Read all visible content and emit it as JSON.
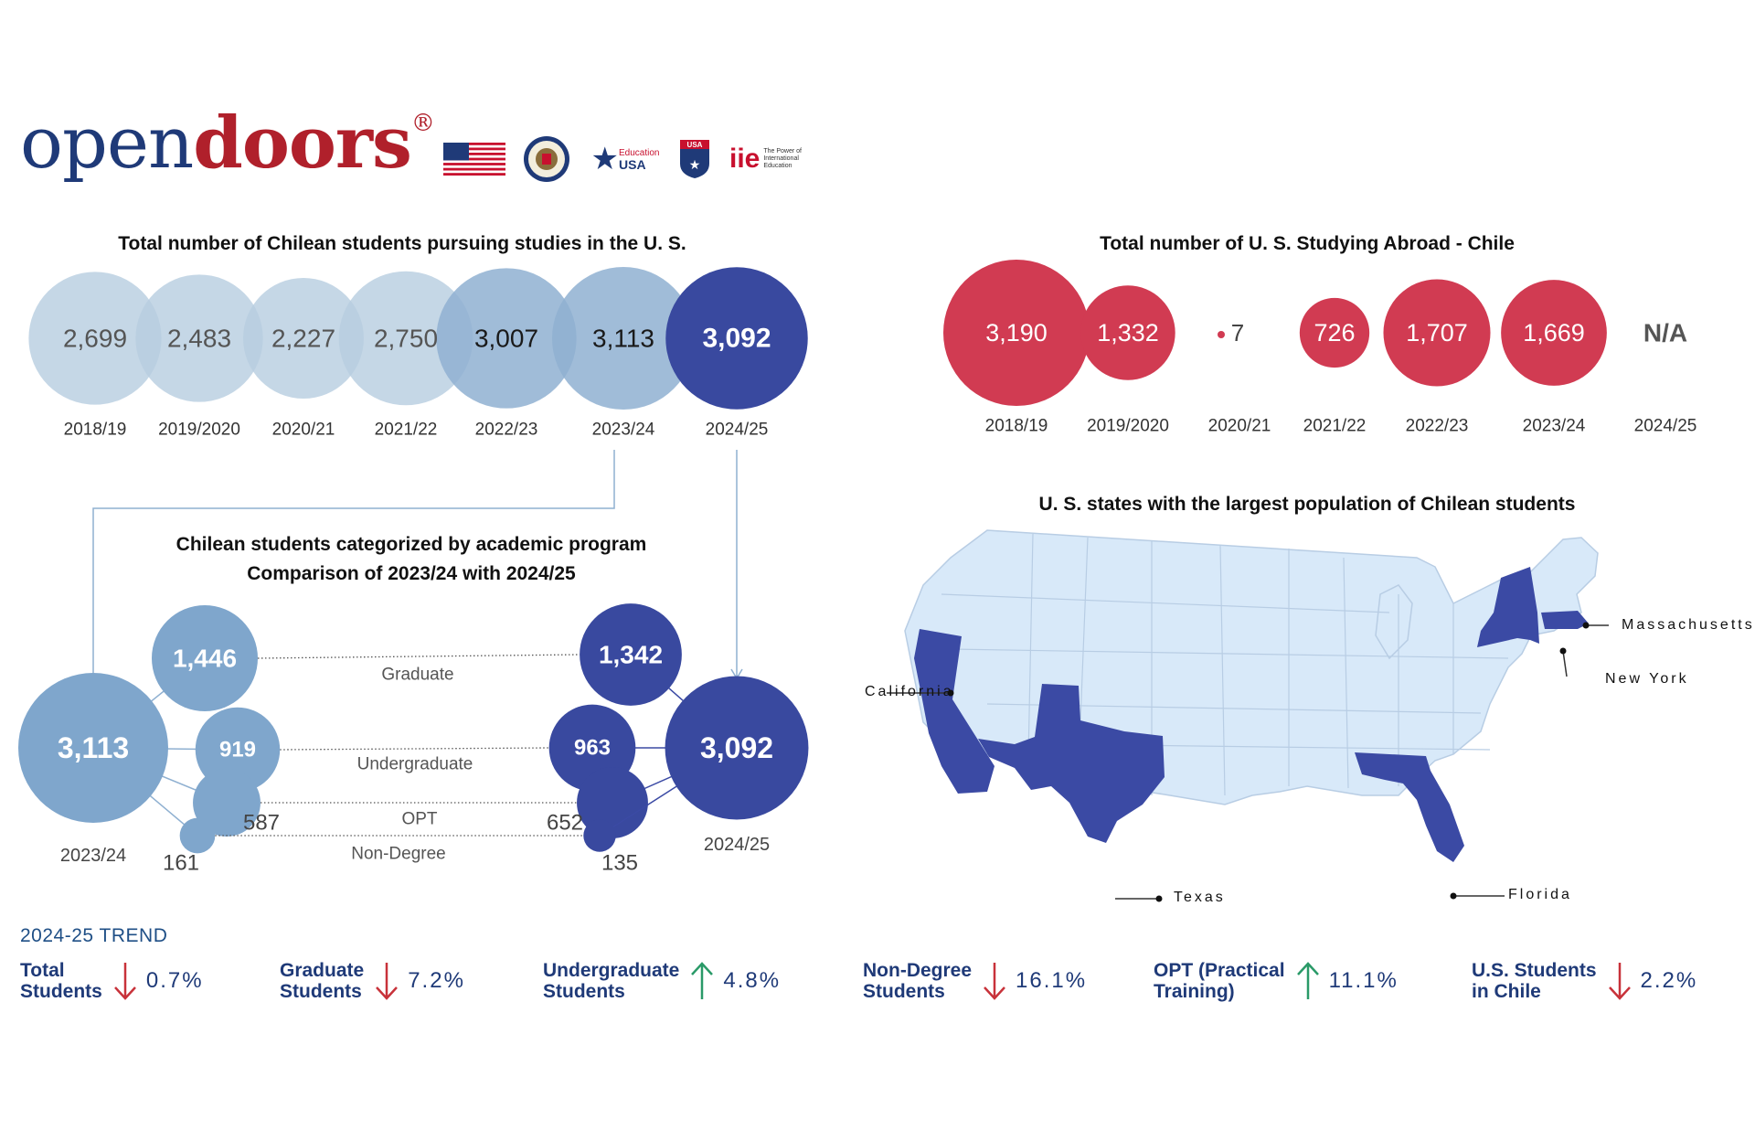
{
  "logo": {
    "part1": "open",
    "part2": "doors",
    "mark": "®"
  },
  "partners": [
    {
      "name": "us-flag-icon"
    },
    {
      "name": "state-department-seal-icon"
    },
    {
      "name": "education-usa-logo",
      "text": "Education USA"
    },
    {
      "name": "usa-study-abroad-logo",
      "text": "USA"
    },
    {
      "name": "iie-logo",
      "text": "iie",
      "tagline": "The Power of International Education"
    }
  ],
  "colors": {
    "light_blue": "#b7cde0",
    "mid_blue": "#8fb0d1",
    "dark_blue": "#39499f",
    "red": "#d13b52",
    "map_fill": "#d8e9f9",
    "highlight": "#3b4aa4"
  },
  "chart_data": [
    {
      "type": "bubble",
      "title": "Total number of Chilean students pursuing studies in the U. S.",
      "categories": [
        "2018/19",
        "2019/2020",
        "2020/21",
        "2021/22",
        "2022/23",
        "2023/24",
        "2024/25"
      ],
      "values": [
        2699,
        2483,
        2227,
        2750,
        3007,
        3113,
        3092
      ],
      "labels": [
        "2,699",
        "2,483",
        "2,227",
        "2,750",
        "3,007",
        "3,113",
        "3,092"
      ]
    },
    {
      "type": "bubble",
      "title": "Total number of U. S. Studying Abroad - Chile",
      "categories": [
        "2018/19",
        "2019/2020",
        "2020/21",
        "2021/22",
        "2022/23",
        "2023/24",
        "2024/25"
      ],
      "values": [
        3190,
        1332,
        7,
        726,
        1707,
        1669,
        null
      ],
      "labels": [
        "3,190",
        "1,332",
        "7",
        "726",
        "1,707",
        "1,669",
        "N/A"
      ]
    },
    {
      "type": "bubble",
      "title": "Chilean students categorized by academic program",
      "subtitle": "Comparison of 2023/24 with 2024/25",
      "years": [
        "2023/24",
        "2024/25"
      ],
      "totals": {
        "values": [
          3113,
          3092
        ],
        "labels": [
          "3,113",
          "3,092"
        ]
      },
      "series": [
        {
          "name": "Graduate",
          "values": [
            1446,
            1342
          ],
          "labels": [
            "1,446",
            "1,342"
          ]
        },
        {
          "name": "Undergraduate",
          "values": [
            919,
            963
          ],
          "labels": [
            "919",
            "963"
          ]
        },
        {
          "name": "OPT",
          "values": [
            587,
            652
          ],
          "labels": [
            "587",
            "652"
          ]
        },
        {
          "name": "Non-Degree",
          "values": [
            161,
            135
          ],
          "labels": [
            "161",
            "135"
          ]
        }
      ]
    }
  ],
  "map": {
    "title": "U. S. states with the largest population of Chilean students",
    "states": [
      "California",
      "Texas",
      "Florida",
      "New York",
      "Massachusetts"
    ]
  },
  "trend": {
    "heading": "2024-25 TREND",
    "items": [
      {
        "label": "Total\nStudents",
        "direction": "down",
        "pct": "0.7%"
      },
      {
        "label": "Graduate\nStudents",
        "direction": "down",
        "pct": "7.2%"
      },
      {
        "label": "Undergraduate\nStudents",
        "direction": "up",
        "pct": "4.8%"
      },
      {
        "label": "Non-Degree\nStudents",
        "direction": "down",
        "pct": "16.1%"
      },
      {
        "label": "OPT (Practical\nTraining)",
        "direction": "up",
        "pct": "11.1%"
      },
      {
        "label": "U.S. Students\nin Chile",
        "direction": "down",
        "pct": "2.2%"
      }
    ]
  }
}
